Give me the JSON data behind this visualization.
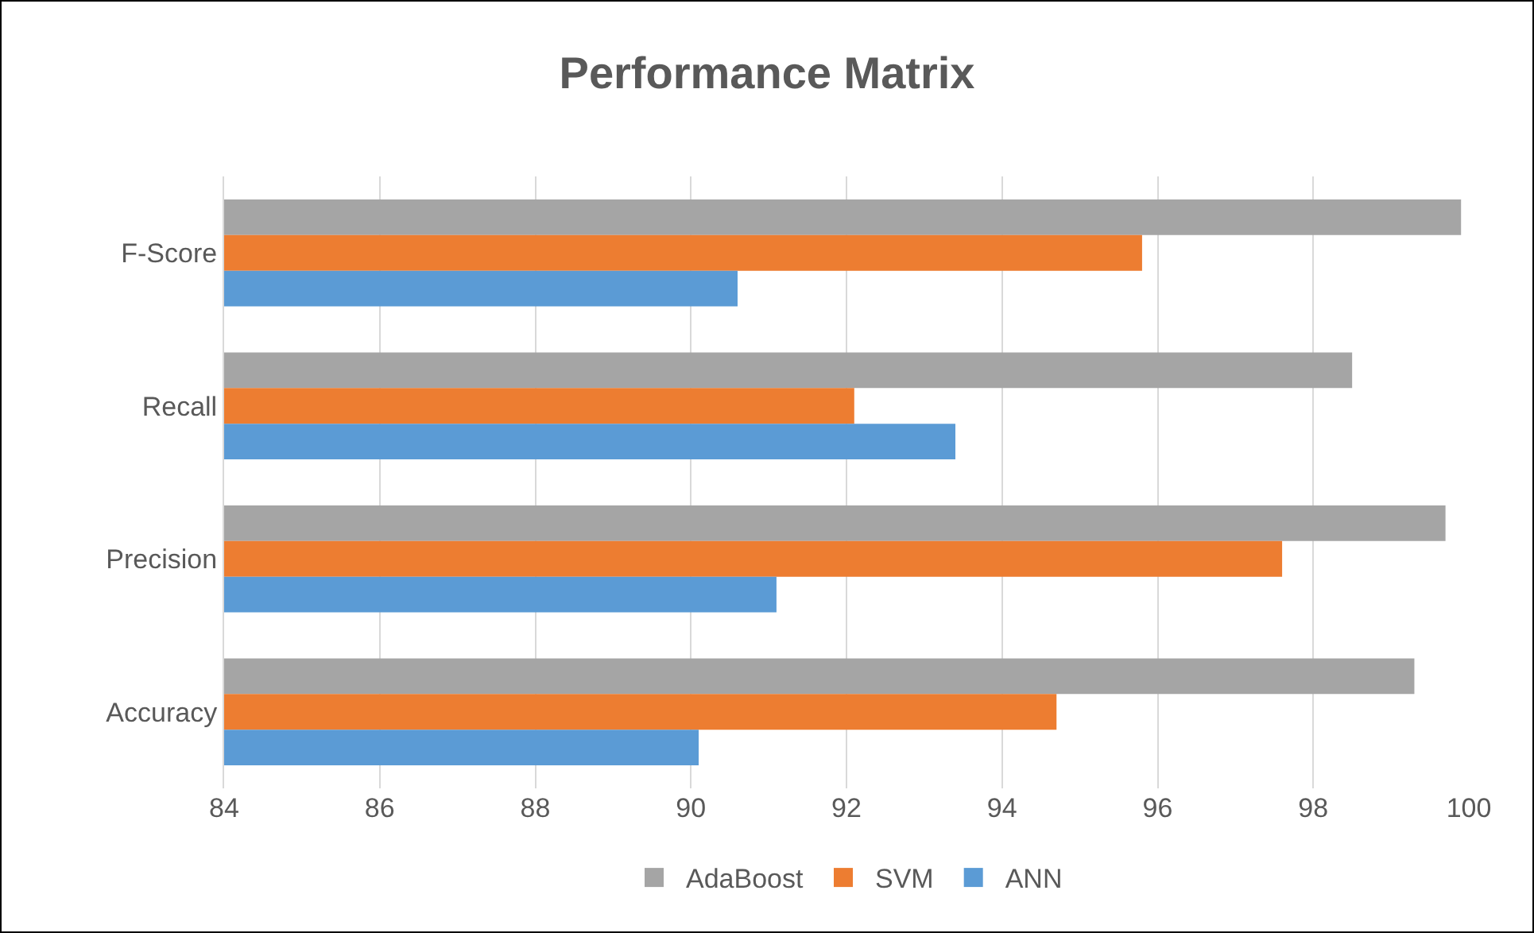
{
  "chart_data": {
    "type": "bar",
    "orientation": "horizontal",
    "title": "Performance Matrix",
    "categories": [
      "F-Score",
      "Recall",
      "Precision",
      "Accuracy"
    ],
    "series": [
      {
        "name": "AdaBoost",
        "color": "#a5a5a5",
        "values": [
          99.9,
          98.5,
          99.7,
          99.3
        ]
      },
      {
        "name": "SVM",
        "color": "#ed7d31",
        "values": [
          95.8,
          92.1,
          97.6,
          94.7
        ]
      },
      {
        "name": "ANN",
        "color": "#5b9bd5",
        "values": [
          90.6,
          93.4,
          91.1,
          90.1
        ]
      }
    ],
    "xlim": [
      84,
      100
    ],
    "xticks": [
      84,
      86,
      88,
      90,
      92,
      94,
      96,
      98,
      100
    ],
    "grid": "x",
    "legend": "bottom"
  }
}
